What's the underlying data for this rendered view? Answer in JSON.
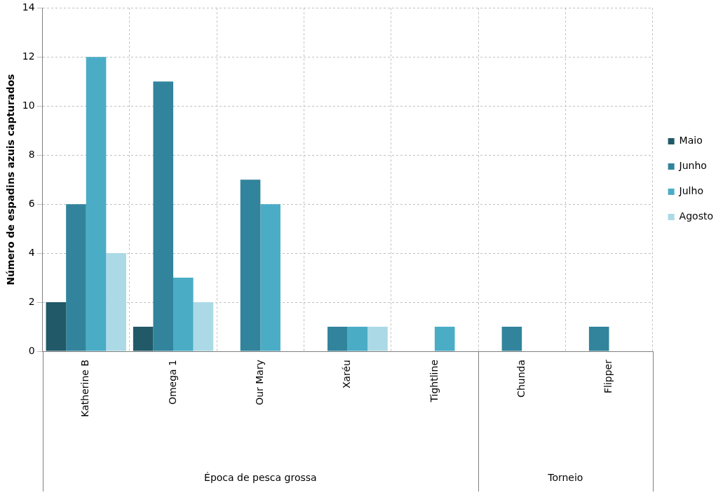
{
  "chart_data": {
    "type": "bar",
    "ylabel": "Número de espadins azuis capturados",
    "categories": [
      "Katherine B",
      "Omega 1",
      "Our Mary",
      "Xaréu",
      "Tightline",
      "Chunda",
      "Flipper"
    ],
    "series": [
      {
        "name": "Maio",
        "color": "#215968",
        "values": [
          2,
          1,
          null,
          null,
          null,
          null,
          null
        ]
      },
      {
        "name": "Junho",
        "color": "#31849b",
        "values": [
          6,
          11,
          7,
          1,
          null,
          1,
          1
        ]
      },
      {
        "name": "Julho",
        "color": "#4bacc6",
        "values": [
          12,
          3,
          6,
          1,
          1,
          null,
          null
        ]
      },
      {
        "name": "Agosto",
        "color": "#abdae6",
        "values": [
          4,
          2,
          null,
          1,
          null,
          null,
          null
        ]
      }
    ],
    "ylim": [
      0,
      14
    ],
    "yticks": [
      0,
      2,
      4,
      6,
      8,
      10,
      12,
      14
    ],
    "grid": true,
    "legend": "right",
    "annotations": [
      "Época de pesca grossa",
      "Torneio"
    ]
  }
}
